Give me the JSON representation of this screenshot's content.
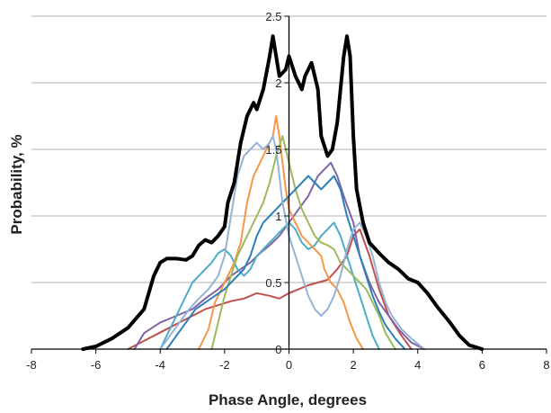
{
  "chart_data": {
    "type": "line",
    "xlabel": "Phase Angle, degrees",
    "ylabel": "Probability, %",
    "xlim": [
      -8,
      8
    ],
    "ylim": [
      0,
      2.5
    ],
    "x_ticks": [
      -8,
      -6,
      -4,
      -2,
      0,
      2,
      4,
      6,
      8
    ],
    "y_ticks": [
      0,
      0.5,
      1,
      1.5,
      2,
      2.5
    ],
    "x_tick_labels": [
      "-8",
      "-6",
      "-4",
      "-2",
      "0",
      "2",
      "4",
      "6",
      "8"
    ],
    "y_tick_labels": [
      "0",
      "0.5",
      "1",
      "1.5",
      "2",
      "2.5"
    ],
    "grid": "horizontal",
    "series": [
      {
        "color": "#000000",
        "width": 4,
        "points": [
          [
            -6.4,
            0
          ],
          [
            -6,
            0.02
          ],
          [
            -5.5,
            0.08
          ],
          [
            -5,
            0.16
          ],
          [
            -4.5,
            0.3
          ],
          [
            -4.2,
            0.55
          ],
          [
            -4,
            0.65
          ],
          [
            -3.8,
            0.68
          ],
          [
            -3.5,
            0.68
          ],
          [
            -3.2,
            0.67
          ],
          [
            -3,
            0.7
          ],
          [
            -2.8,
            0.78
          ],
          [
            -2.6,
            0.82
          ],
          [
            -2.4,
            0.8
          ],
          [
            -2.2,
            0.85
          ],
          [
            -2,
            0.92
          ],
          [
            -1.9,
            1.1
          ],
          [
            -1.7,
            1.25
          ],
          [
            -1.5,
            1.55
          ],
          [
            -1.3,
            1.75
          ],
          [
            -1.1,
            1.85
          ],
          [
            -1,
            1.8
          ],
          [
            -0.8,
            1.95
          ],
          [
            -0.6,
            2.2
          ],
          [
            -0.5,
            2.35
          ],
          [
            -0.4,
            2.2
          ],
          [
            -0.3,
            2.05
          ],
          [
            -0.1,
            2.1
          ],
          [
            0,
            2.2
          ],
          [
            0.2,
            2.05
          ],
          [
            0.4,
            1.95
          ],
          [
            0.5,
            2.05
          ],
          [
            0.7,
            2.15
          ],
          [
            0.9,
            1.95
          ],
          [
            1,
            1.6
          ],
          [
            1.2,
            1.45
          ],
          [
            1.35,
            1.5
          ],
          [
            1.5,
            1.7
          ],
          [
            1.6,
            1.95
          ],
          [
            1.7,
            2.2
          ],
          [
            1.8,
            2.35
          ],
          [
            1.9,
            2.2
          ],
          [
            2,
            1.6
          ],
          [
            2.1,
            1.2
          ],
          [
            2.3,
            0.95
          ],
          [
            2.5,
            0.8
          ],
          [
            2.8,
            0.72
          ],
          [
            3.1,
            0.65
          ],
          [
            3.4,
            0.6
          ],
          [
            3.7,
            0.53
          ],
          [
            4,
            0.5
          ],
          [
            4.3,
            0.42
          ],
          [
            4.6,
            0.32
          ],
          [
            5,
            0.2
          ],
          [
            5.3,
            0.1
          ],
          [
            5.6,
            0.03
          ],
          [
            6,
            0
          ]
        ]
      },
      {
        "color": "#c0504d",
        "width": 2,
        "points": [
          [
            -5,
            0
          ],
          [
            -4.6,
            0.05
          ],
          [
            -4.2,
            0.1
          ],
          [
            -3.8,
            0.15
          ],
          [
            -3.4,
            0.2
          ],
          [
            -3,
            0.25
          ],
          [
            -2.6,
            0.3
          ],
          [
            -2.2,
            0.33
          ],
          [
            -1.8,
            0.36
          ],
          [
            -1.4,
            0.38
          ],
          [
            -1,
            0.42
          ],
          [
            -0.6,
            0.4
          ],
          [
            -0.3,
            0.38
          ],
          [
            0,
            0.42
          ],
          [
            0.3,
            0.45
          ],
          [
            0.6,
            0.48
          ],
          [
            0.9,
            0.5
          ],
          [
            1.2,
            0.52
          ],
          [
            1.5,
            0.6
          ],
          [
            1.8,
            0.7
          ],
          [
            2,
            0.85
          ],
          [
            2.2,
            0.9
          ],
          [
            2.5,
            0.7
          ],
          [
            2.8,
            0.45
          ],
          [
            3.1,
            0.25
          ],
          [
            3.5,
            0.1
          ],
          [
            3.8,
            0
          ]
        ]
      },
      {
        "color": "#8064a2",
        "width": 2,
        "points": [
          [
            -4.8,
            0
          ],
          [
            -4.5,
            0.12
          ],
          [
            -4,
            0.2
          ],
          [
            -3.5,
            0.25
          ],
          [
            -3,
            0.3
          ],
          [
            -2.6,
            0.38
          ],
          [
            -2.2,
            0.45
          ],
          [
            -1.8,
            0.55
          ],
          [
            -1.5,
            0.6
          ],
          [
            -1.2,
            0.65
          ],
          [
            -0.9,
            0.72
          ],
          [
            -0.6,
            0.78
          ],
          [
            -0.3,
            0.85
          ],
          [
            0,
            0.95
          ],
          [
            0.3,
            1.05
          ],
          [
            0.6,
            1.15
          ],
          [
            0.9,
            1.3
          ],
          [
            1.1,
            1.35
          ],
          [
            1.3,
            1.4
          ],
          [
            1.5,
            1.3
          ],
          [
            1.7,
            1.15
          ],
          [
            2,
            0.95
          ],
          [
            2.2,
            0.7
          ],
          [
            2.5,
            0.5
          ],
          [
            2.8,
            0.35
          ],
          [
            3.1,
            0.25
          ],
          [
            3.4,
            0.15
          ],
          [
            3.8,
            0.05
          ],
          [
            4.2,
            0
          ]
        ]
      },
      {
        "color": "#4bacc6",
        "width": 2,
        "points": [
          [
            -4,
            0
          ],
          [
            -3.8,
            0.1
          ],
          [
            -3.5,
            0.25
          ],
          [
            -3.2,
            0.4
          ],
          [
            -3,
            0.5
          ],
          [
            -2.8,
            0.55
          ],
          [
            -2.6,
            0.6
          ],
          [
            -2.4,
            0.65
          ],
          [
            -2.2,
            0.72
          ],
          [
            -2,
            0.75
          ],
          [
            -1.8,
            0.7
          ],
          [
            -1.6,
            0.6
          ],
          [
            -1.4,
            0.55
          ],
          [
            -1.2,
            0.6
          ],
          [
            -1,
            0.7
          ],
          [
            -0.8,
            0.75
          ],
          [
            -0.6,
            0.8
          ],
          [
            -0.4,
            0.85
          ],
          [
            -0.2,
            0.9
          ],
          [
            0,
            0.95
          ],
          [
            0.2,
            0.9
          ],
          [
            0.4,
            0.8
          ],
          [
            0.6,
            0.75
          ],
          [
            0.8,
            0.78
          ],
          [
            1,
            0.85
          ],
          [
            1.2,
            0.9
          ],
          [
            1.4,
            0.95
          ],
          [
            1.6,
            0.85
          ],
          [
            1.8,
            0.7
          ],
          [
            2,
            0.55
          ],
          [
            2.2,
            0.4
          ],
          [
            2.4,
            0.25
          ],
          [
            2.6,
            0.1
          ],
          [
            2.8,
            0
          ]
        ]
      },
      {
        "color": "#f79646",
        "width": 2,
        "points": [
          [
            -2.8,
            0
          ],
          [
            -2.5,
            0.15
          ],
          [
            -2.3,
            0.35
          ],
          [
            -2.1,
            0.45
          ],
          [
            -1.9,
            0.55
          ],
          [
            -1.7,
            0.65
          ],
          [
            -1.5,
            0.8
          ],
          [
            -1.3,
            1.1
          ],
          [
            -1.1,
            1.3
          ],
          [
            -0.9,
            1.4
          ],
          [
            -0.7,
            1.5
          ],
          [
            -0.5,
            1.6
          ],
          [
            -0.4,
            1.75
          ],
          [
            -0.3,
            1.6
          ],
          [
            -0.2,
            1.4
          ],
          [
            -0.1,
            1.2
          ],
          [
            0,
            1.05
          ],
          [
            0.2,
            0.95
          ],
          [
            0.4,
            0.85
          ],
          [
            0.6,
            0.8
          ],
          [
            0.8,
            0.75
          ],
          [
            1,
            0.7
          ],
          [
            1.1,
            0.6
          ],
          [
            1.3,
            0.5
          ],
          [
            1.5,
            0.45
          ],
          [
            1.7,
            0.35
          ],
          [
            1.9,
            0.2
          ],
          [
            2.1,
            0.08
          ],
          [
            2.3,
            0
          ]
        ]
      },
      {
        "color": "#9bbb59",
        "width": 2,
        "points": [
          [
            -2.4,
            0
          ],
          [
            -2.2,
            0.2
          ],
          [
            -2,
            0.4
          ],
          [
            -1.8,
            0.55
          ],
          [
            -1.6,
            0.7
          ],
          [
            -1.4,
            0.8
          ],
          [
            -1.2,
            0.9
          ],
          [
            -1,
            1.0
          ],
          [
            -0.8,
            1.1
          ],
          [
            -0.6,
            1.25
          ],
          [
            -0.4,
            1.45
          ],
          [
            -0.2,
            1.6
          ],
          [
            0,
            1.4
          ],
          [
            0.2,
            1.2
          ],
          [
            0.4,
            1.05
          ],
          [
            0.6,
            0.95
          ],
          [
            0.8,
            0.85
          ],
          [
            1,
            0.8
          ],
          [
            1.2,
            0.78
          ],
          [
            1.4,
            0.75
          ],
          [
            1.6,
            0.65
          ],
          [
            1.8,
            0.6
          ],
          [
            2,
            0.55
          ],
          [
            2.2,
            0.5
          ],
          [
            2.4,
            0.45
          ],
          [
            2.6,
            0.35
          ],
          [
            2.8,
            0.25
          ],
          [
            3,
            0.12
          ],
          [
            3.3,
            0
          ]
        ]
      },
      {
        "color": "#2c7fb8",
        "width": 2,
        "points": [
          [
            -3.8,
            0
          ],
          [
            -3.5,
            0.1
          ],
          [
            -3.2,
            0.2
          ],
          [
            -2.9,
            0.3
          ],
          [
            -2.6,
            0.35
          ],
          [
            -2.3,
            0.4
          ],
          [
            -2,
            0.45
          ],
          [
            -1.8,
            0.5
          ],
          [
            -1.6,
            0.55
          ],
          [
            -1.4,
            0.6
          ],
          [
            -1.2,
            0.7
          ],
          [
            -1,
            0.85
          ],
          [
            -0.8,
            0.95
          ],
          [
            -0.6,
            1.0
          ],
          [
            -0.4,
            1.05
          ],
          [
            -0.2,
            1.1
          ],
          [
            0,
            1.15
          ],
          [
            0.2,
            1.2
          ],
          [
            0.4,
            1.25
          ],
          [
            0.6,
            1.3
          ],
          [
            0.8,
            1.25
          ],
          [
            1,
            1.2
          ],
          [
            1.2,
            1.25
          ],
          [
            1.4,
            1.3
          ],
          [
            1.6,
            1.2
          ],
          [
            1.8,
            1.0
          ],
          [
            2,
            0.85
          ],
          [
            2.2,
            0.7
          ],
          [
            2.4,
            0.55
          ],
          [
            2.6,
            0.4
          ],
          [
            2.8,
            0.28
          ],
          [
            3,
            0.18
          ],
          [
            3.3,
            0.08
          ],
          [
            3.6,
            0
          ]
        ]
      },
      {
        "color": "#95b3d7",
        "width": 2,
        "points": [
          [
            -4,
            0
          ],
          [
            -3.7,
            0.1
          ],
          [
            -3.4,
            0.2
          ],
          [
            -3.1,
            0.3
          ],
          [
            -2.8,
            0.38
          ],
          [
            -2.5,
            0.45
          ],
          [
            -2.2,
            0.55
          ],
          [
            -2,
            0.7
          ],
          [
            -1.8,
            1.0
          ],
          [
            -1.6,
            1.3
          ],
          [
            -1.4,
            1.45
          ],
          [
            -1.2,
            1.5
          ],
          [
            -1,
            1.55
          ],
          [
            -0.8,
            1.5
          ],
          [
            -0.6,
            1.55
          ],
          [
            -0.5,
            1.6
          ],
          [
            -0.4,
            1.5
          ],
          [
            -0.3,
            1.3
          ],
          [
            -0.2,
            1.1
          ],
          [
            0,
            0.85
          ],
          [
            0.2,
            0.7
          ],
          [
            0.4,
            0.55
          ],
          [
            0.6,
            0.4
          ],
          [
            0.8,
            0.3
          ],
          [
            1,
            0.25
          ],
          [
            1.2,
            0.3
          ],
          [
            1.4,
            0.4
          ],
          [
            1.6,
            0.55
          ],
          [
            1.8,
            0.75
          ],
          [
            2,
            0.9
          ],
          [
            2.2,
            0.95
          ],
          [
            2.4,
            0.85
          ],
          [
            2.6,
            0.7
          ],
          [
            2.8,
            0.5
          ],
          [
            3,
            0.35
          ],
          [
            3.2,
            0.25
          ],
          [
            3.5,
            0.15
          ],
          [
            3.8,
            0.08
          ],
          [
            4.2,
            0
          ]
        ]
      }
    ]
  }
}
